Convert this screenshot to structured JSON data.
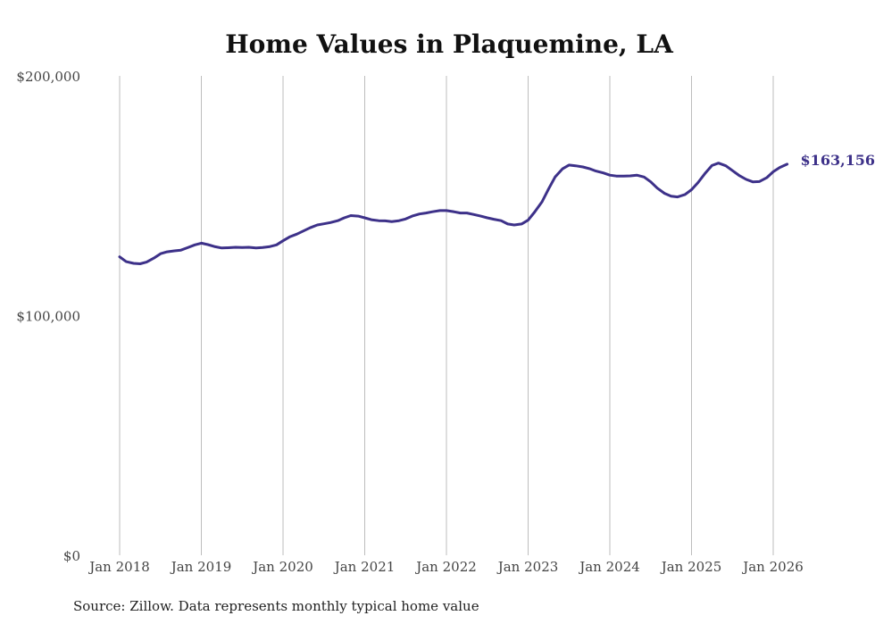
{
  "chart_data": {
    "type": "line",
    "title": "Home Values in Plaquemine, LA",
    "source": "Source: Zillow. Data represents monthly typical home value",
    "ylim": [
      0,
      200000
    ],
    "y_ticks": [
      {
        "value": 0,
        "label": "$0"
      },
      {
        "value": 100000,
        "label": "$100,000"
      },
      {
        "value": 200000,
        "label": "$200,000"
      }
    ],
    "x_ticks": [
      {
        "value": 2018,
        "label": "Jan 2018"
      },
      {
        "value": 2019,
        "label": "Jan 2019"
      },
      {
        "value": 2020,
        "label": "Jan 2020"
      },
      {
        "value": 2021,
        "label": "Jan 2021"
      },
      {
        "value": 2022,
        "label": "Jan 2022"
      },
      {
        "value": 2023,
        "label": "Jan 2023"
      },
      {
        "value": 2024,
        "label": "Jan 2024"
      },
      {
        "value": 2025,
        "label": "Jan 2025"
      },
      {
        "value": 2026,
        "label": "Jan 2026"
      }
    ],
    "xlim": [
      2018,
      2026
    ],
    "line_color": "#3d3189",
    "end_label": "$163,156",
    "series": [
      {
        "name": "Typical home value",
        "points": [
          [
            2018.0,
            124500
          ],
          [
            2018.08,
            122500
          ],
          [
            2018.17,
            121800
          ],
          [
            2018.25,
            121600
          ],
          [
            2018.33,
            122300
          ],
          [
            2018.42,
            124000
          ],
          [
            2018.5,
            125800
          ],
          [
            2018.58,
            126600
          ],
          [
            2018.67,
            127000
          ],
          [
            2018.75,
            127300
          ],
          [
            2018.83,
            128300
          ],
          [
            2018.92,
            129500
          ],
          [
            2019.0,
            130200
          ],
          [
            2019.08,
            129600
          ],
          [
            2019.17,
            128700
          ],
          [
            2019.25,
            128200
          ],
          [
            2019.33,
            128300
          ],
          [
            2019.42,
            128500
          ],
          [
            2019.5,
            128400
          ],
          [
            2019.58,
            128500
          ],
          [
            2019.67,
            128200
          ],
          [
            2019.75,
            128400
          ],
          [
            2019.83,
            128700
          ],
          [
            2019.92,
            129500
          ],
          [
            2020.0,
            131200
          ],
          [
            2020.08,
            132800
          ],
          [
            2020.17,
            134000
          ],
          [
            2020.25,
            135300
          ],
          [
            2020.33,
            136600
          ],
          [
            2020.42,
            137800
          ],
          [
            2020.5,
            138300
          ],
          [
            2020.58,
            138800
          ],
          [
            2020.67,
            139600
          ],
          [
            2020.75,
            140800
          ],
          [
            2020.83,
            141700
          ],
          [
            2020.92,
            141500
          ],
          [
            2021.0,
            140800
          ],
          [
            2021.08,
            140000
          ],
          [
            2021.17,
            139600
          ],
          [
            2021.25,
            139500
          ],
          [
            2021.33,
            139200
          ],
          [
            2021.42,
            139600
          ],
          [
            2021.5,
            140300
          ],
          [
            2021.58,
            141500
          ],
          [
            2021.67,
            142400
          ],
          [
            2021.75,
            142800
          ],
          [
            2021.83,
            143300
          ],
          [
            2021.92,
            143800
          ],
          [
            2022.0,
            143800
          ],
          [
            2022.08,
            143400
          ],
          [
            2022.17,
            142800
          ],
          [
            2022.25,
            142800
          ],
          [
            2022.33,
            142200
          ],
          [
            2022.42,
            141500
          ],
          [
            2022.5,
            140800
          ],
          [
            2022.58,
            140200
          ],
          [
            2022.67,
            139600
          ],
          [
            2022.75,
            138200
          ],
          [
            2022.83,
            137800
          ],
          [
            2022.92,
            138200
          ],
          [
            2023.0,
            139800
          ],
          [
            2023.08,
            143200
          ],
          [
            2023.17,
            147500
          ],
          [
            2023.25,
            152800
          ],
          [
            2023.33,
            157800
          ],
          [
            2023.42,
            161200
          ],
          [
            2023.5,
            162800
          ],
          [
            2023.58,
            162500
          ],
          [
            2023.67,
            162000
          ],
          [
            2023.75,
            161300
          ],
          [
            2023.83,
            160300
          ],
          [
            2023.92,
            159500
          ],
          [
            2024.0,
            158600
          ],
          [
            2024.08,
            158200
          ],
          [
            2024.17,
            158200
          ],
          [
            2024.25,
            158300
          ],
          [
            2024.33,
            158600
          ],
          [
            2024.42,
            157800
          ],
          [
            2024.5,
            155800
          ],
          [
            2024.58,
            153200
          ],
          [
            2024.67,
            151000
          ],
          [
            2024.75,
            149800
          ],
          [
            2024.83,
            149500
          ],
          [
            2024.92,
            150500
          ],
          [
            2025.0,
            152500
          ],
          [
            2025.08,
            155500
          ],
          [
            2025.17,
            159500
          ],
          [
            2025.25,
            162600
          ],
          [
            2025.33,
            163600
          ],
          [
            2025.42,
            162500
          ],
          [
            2025.5,
            160500
          ],
          [
            2025.58,
            158500
          ],
          [
            2025.67,
            156800
          ],
          [
            2025.75,
            155800
          ],
          [
            2025.83,
            155900
          ],
          [
            2025.92,
            157500
          ],
          [
            2026.0,
            160000
          ],
          [
            2026.08,
            161800
          ],
          [
            2026.17,
            163156
          ]
        ]
      }
    ]
  }
}
